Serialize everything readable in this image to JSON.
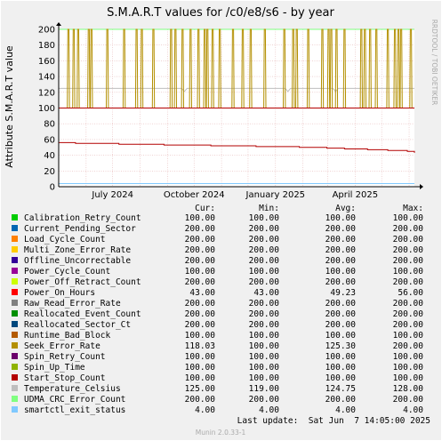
{
  "chart_data": {
    "type": "line",
    "title": "S.M.A.R.T values for /c0/e8/s6 - by year",
    "ylabel": "Attribute S.M.A.R.T value",
    "side_label": "RRDTOOL / TOBI OETIKER",
    "ylim": [
      0,
      200
    ],
    "y_ticks": [
      0,
      20,
      40,
      60,
      80,
      100,
      120,
      140,
      160,
      180,
      200
    ],
    "x_range": [
      "2024-05-01",
      "2025-06-07"
    ],
    "x_ticks": [
      {
        "date": "2024-07-01",
        "label": "July 2024"
      },
      {
        "date": "2024-10-01",
        "label": "October 2024"
      },
      {
        "date": "2025-01-01",
        "label": "January 2025"
      },
      {
        "date": "2025-04-01",
        "label": "April 2025"
      }
    ],
    "columns": [
      "Cur:",
      "Min:",
      "Avg:",
      "Max:"
    ],
    "series": [
      {
        "name": "Calibration_Retry_Count",
        "color": "#00cc00",
        "values": [
          "100.00",
          "100.00",
          "100.00",
          "100.00"
        ]
      },
      {
        "name": "Current_Pending_Sector",
        "color": "#0066b3",
        "values": [
          "200.00",
          "200.00",
          "200.00",
          "200.00"
        ]
      },
      {
        "name": "Load_Cycle_Count",
        "color": "#ff8000",
        "values": [
          "200.00",
          "200.00",
          "200.00",
          "200.00"
        ]
      },
      {
        "name": "Multi_Zone_Error_Rate",
        "color": "#ffcc00",
        "values": [
          "200.00",
          "200.00",
          "200.00",
          "200.00"
        ]
      },
      {
        "name": "Offline_Uncorrectable",
        "color": "#330099",
        "values": [
          "200.00",
          "200.00",
          "200.00",
          "200.00"
        ]
      },
      {
        "name": "Power_Cycle_Count",
        "color": "#990099",
        "values": [
          "100.00",
          "100.00",
          "100.00",
          "100.00"
        ]
      },
      {
        "name": "Power_Off_Retract_Count",
        "color": "#ccff00",
        "values": [
          "200.00",
          "200.00",
          "200.00",
          "200.00"
        ]
      },
      {
        "name": "Power_On_Hours",
        "color": "#ff0000",
        "values": [
          "43.00",
          "43.00",
          "49.23",
          "56.00"
        ]
      },
      {
        "name": "Raw_Read_Error_Rate",
        "color": "#808080",
        "values": [
          "200.00",
          "200.00",
          "200.00",
          "200.00"
        ]
      },
      {
        "name": "Reallocated_Event_Count",
        "color": "#008f00",
        "values": [
          "200.00",
          "200.00",
          "200.00",
          "200.00"
        ]
      },
      {
        "name": "Reallocated_Sector_Ct",
        "color": "#00487d",
        "values": [
          "200.00",
          "200.00",
          "200.00",
          "200.00"
        ]
      },
      {
        "name": "Runtime_Bad_Block",
        "color": "#b35a00",
        "values": [
          "100.00",
          "100.00",
          "100.00",
          "100.00"
        ]
      },
      {
        "name": "Seek_Error_Rate",
        "color": "#b38f00",
        "values": [
          "118.03",
          "100.00",
          "125.30",
          "200.00"
        ]
      },
      {
        "name": "Spin_Retry_Count",
        "color": "#6b006b",
        "values": [
          "100.00",
          "100.00",
          "100.00",
          "100.00"
        ]
      },
      {
        "name": "Spin_Up_Time",
        "color": "#8fb300",
        "values": [
          "100.00",
          "100.00",
          "100.00",
          "100.00"
        ]
      },
      {
        "name": "Start_Stop_Count",
        "color": "#b30000",
        "values": [
          "100.00",
          "100.00",
          "100.00",
          "100.00"
        ]
      },
      {
        "name": "Temperature_Celsius",
        "color": "#bebebe",
        "values": [
          "125.00",
          "119.00",
          "124.75",
          "128.00"
        ]
      },
      {
        "name": "UDMA_CRC_Error_Count",
        "color": "#80ff80",
        "values": [
          "200.00",
          "200.00",
          "200.00",
          "200.00"
        ]
      },
      {
        "name": "smartctl_exit_status",
        "color": "#80c9ff",
        "values": [
          "4.00",
          "4.00",
          "4.00",
          "4.00"
        ]
      }
    ],
    "power_on_hours_steps": [
      {
        "date": "2024-05-01",
        "value": 56
      },
      {
        "date": "2024-05-20",
        "value": 55
      },
      {
        "date": "2024-07-08",
        "value": 54
      },
      {
        "date": "2024-08-28",
        "value": 53
      },
      {
        "date": "2024-10-20",
        "value": 52
      },
      {
        "date": "2024-12-10",
        "value": 51
      },
      {
        "date": "2025-01-28",
        "value": 50
      },
      {
        "date": "2025-02-28",
        "value": 49
      },
      {
        "date": "2025-03-20",
        "value": 48
      },
      {
        "date": "2025-04-15",
        "value": 47
      },
      {
        "date": "2025-05-08",
        "value": 46
      },
      {
        "date": "2025-05-30",
        "value": 45
      },
      {
        "date": "2025-06-07",
        "value": 43
      }
    ],
    "seek_error_spikes": [
      "2024-05-12",
      "2024-05-18",
      "2024-05-23",
      "2024-06-04",
      "2024-06-07",
      "2024-06-25",
      "2024-07-14",
      "2024-07-28",
      "2024-08-03",
      "2024-08-16",
      "2024-09-05",
      "2024-09-10",
      "2024-09-18",
      "2024-09-27",
      "2024-10-06",
      "2024-10-13",
      "2024-10-16",
      "2024-10-22",
      "2024-10-30",
      "2024-11-14",
      "2024-11-25",
      "2024-12-04",
      "2024-12-20",
      "2025-01-11",
      "2025-01-21",
      "2025-01-25",
      "2025-02-07",
      "2025-02-23",
      "2025-03-02",
      "2025-03-05",
      "2025-03-11",
      "2025-03-20",
      "2025-04-08",
      "2025-04-12",
      "2025-04-18",
      "2025-04-25",
      "2025-05-08",
      "2025-05-16",
      "2025-05-20",
      "2025-05-23",
      "2025-06-03"
    ],
    "seek_error_baseline": 100,
    "seek_error_peak": 200,
    "temperature_baseline": 125,
    "temperature_low_dates": [
      "2024-09-20",
      "2025-01-15",
      "2025-03-10"
    ],
    "temperature_low": 121,
    "last_update": "Last update:  Sat Jun  7 14:05:00 2025",
    "footer": "Munin 2.0.33-1"
  }
}
